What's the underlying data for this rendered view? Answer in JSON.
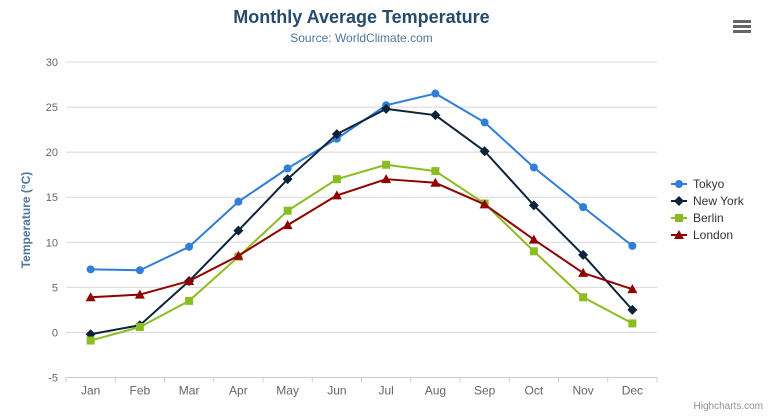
{
  "header": {
    "title": "Monthly Average Temperature",
    "subtitle": "Source: WorldClimate.com"
  },
  "icons": {
    "menu": "hamburger-menu"
  },
  "credits": "Highcharts.com",
  "colors": {
    "title": "#274b6d",
    "subtitle": "#4d759e",
    "axis_title": "#4d759e",
    "tick_label": "#666666",
    "grid": "#d8d8d8",
    "axis_line": "#c0d0e0",
    "legend_text": "#333333",
    "credits": "#909090",
    "menu_icon": "#666666"
  },
  "chart_data": {
    "type": "line",
    "title": "Monthly Average Temperature",
    "subtitle": "Source: WorldClimate.com",
    "xlabel": "",
    "ylabel": "Temperature (°C)",
    "categories": [
      "Jan",
      "Feb",
      "Mar",
      "Apr",
      "May",
      "Jun",
      "Jul",
      "Aug",
      "Sep",
      "Oct",
      "Nov",
      "Dec"
    ],
    "series": [
      {
        "name": "Tokyo",
        "color": "#2f7ed8",
        "marker": "circle",
        "values": [
          7.0,
          6.9,
          9.5,
          14.5,
          18.2,
          21.5,
          25.2,
          26.5,
          23.3,
          18.3,
          13.9,
          9.6
        ]
      },
      {
        "name": "New York",
        "color": "#0d233a",
        "marker": "diamond",
        "values": [
          -0.2,
          0.8,
          5.7,
          11.3,
          17.0,
          22.0,
          24.8,
          24.1,
          20.1,
          14.1,
          8.6,
          2.5
        ]
      },
      {
        "name": "Berlin",
        "color": "#8bbc21",
        "marker": "square",
        "values": [
          -0.9,
          0.6,
          3.5,
          8.4,
          13.5,
          17.0,
          18.6,
          17.9,
          14.3,
          9.0,
          3.9,
          1.0
        ]
      },
      {
        "name": "London",
        "color": "#910000",
        "marker": "triangle",
        "values": [
          3.9,
          4.2,
          5.7,
          8.5,
          11.9,
          15.2,
          17.0,
          16.6,
          14.2,
          10.3,
          6.6,
          4.8
        ]
      }
    ],
    "ylim": [
      -5,
      30
    ],
    "yticks": [
      -5,
      0,
      5,
      10,
      15,
      20,
      25,
      30
    ],
    "grid": true,
    "legend_position": "right"
  }
}
